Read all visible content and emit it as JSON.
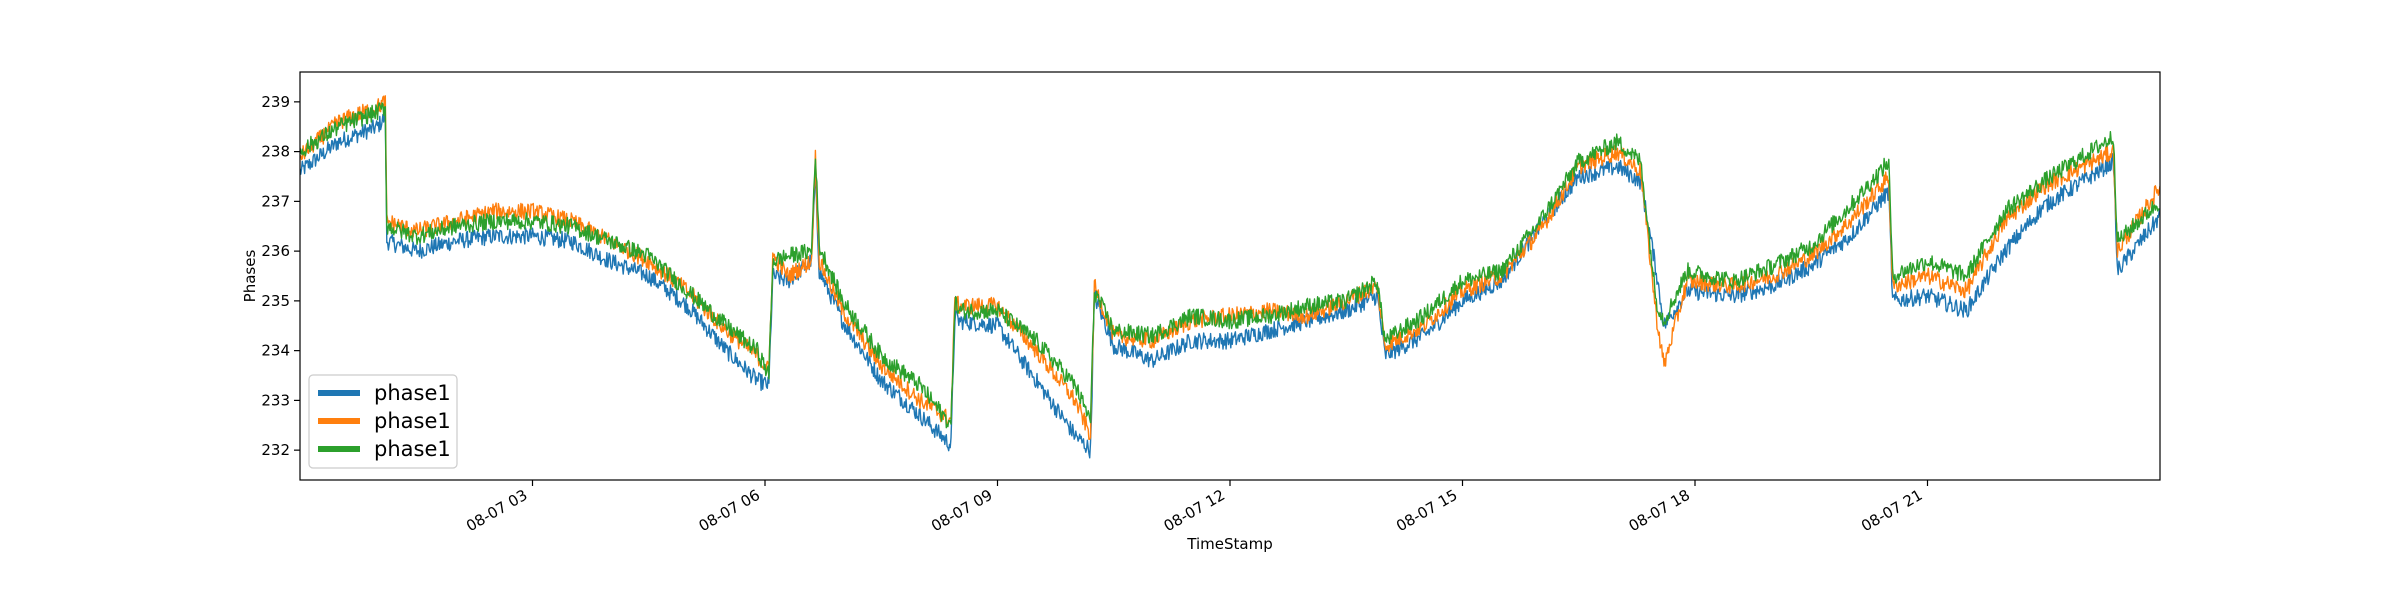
{
  "chart_data": {
    "type": "line",
    "title": "",
    "xlabel": "TimeStamp",
    "ylabel": "Phases",
    "ylim": [
      231.4,
      239.6
    ],
    "y_ticks": [
      232,
      233,
      234,
      235,
      236,
      237,
      238,
      239
    ],
    "x_ticks": [
      {
        "hour": 3,
        "label": "08-07 03"
      },
      {
        "hour": 6,
        "label": "08-07 06"
      },
      {
        "hour": 9,
        "label": "08-07 09"
      },
      {
        "hour": 12,
        "label": "08-07 12"
      },
      {
        "hour": 15,
        "label": "08-07 15"
      },
      {
        "hour": 18,
        "label": "08-07 18"
      },
      {
        "hour": 21,
        "label": "08-07 21"
      }
    ],
    "xlim_hours": [
      0,
      24
    ],
    "grid": false,
    "legend_position": "lower-left",
    "colors": [
      "#1f77b4",
      "#ff7f0e",
      "#2ca02c"
    ],
    "x": [
      0,
      0.5,
      1.0,
      1.1,
      1.12,
      1.5,
      2.0,
      2.5,
      3.0,
      3.5,
      4.0,
      4.5,
      5.0,
      5.5,
      5.9,
      6.05,
      6.1,
      6.3,
      6.6,
      6.65,
      6.7,
      7.0,
      7.5,
      8.0,
      8.4,
      8.45,
      8.5,
      9.0,
      9.5,
      10.0,
      10.2,
      10.25,
      10.5,
      11.0,
      11.5,
      12.0,
      12.5,
      13.0,
      13.5,
      13.9,
      14.0,
      14.5,
      15.0,
      15.5,
      16.0,
      16.5,
      17.0,
      17.3,
      17.5,
      17.6,
      17.9,
      18.5,
      19.0,
      19.5,
      20.0,
      20.5,
      20.55,
      21.0,
      21.5,
      22.0,
      22.5,
      23.0,
      23.4,
      23.45,
      24.0
    ],
    "series": [
      {
        "name": "phase1",
        "values": [
          237.6,
          238.2,
          238.5,
          238.7,
          236.2,
          236.0,
          236.2,
          236.3,
          236.3,
          236.2,
          235.8,
          235.5,
          234.9,
          234.0,
          233.4,
          233.3,
          235.5,
          235.4,
          235.8,
          237.5,
          235.6,
          234.6,
          233.4,
          232.7,
          232.1,
          234.7,
          234.6,
          234.5,
          233.4,
          232.3,
          232.0,
          235.1,
          234.1,
          233.8,
          234.2,
          234.2,
          234.4,
          234.6,
          234.8,
          235.1,
          233.9,
          234.3,
          235.0,
          235.4,
          236.5,
          237.5,
          237.7,
          237.4,
          235.6,
          234.5,
          235.2,
          235.1,
          235.3,
          235.7,
          236.3,
          237.2,
          235.0,
          235.1,
          234.8,
          236.0,
          236.9,
          237.4,
          237.8,
          235.6,
          236.7
        ]
      },
      {
        "name": "phase1",
        "values": [
          237.9,
          238.6,
          238.9,
          239.0,
          236.6,
          236.4,
          236.6,
          236.8,
          236.8,
          236.6,
          236.2,
          235.8,
          235.2,
          234.4,
          233.9,
          233.6,
          235.9,
          235.5,
          235.8,
          237.9,
          235.8,
          234.8,
          233.7,
          233.0,
          232.6,
          235.0,
          234.9,
          234.9,
          234.0,
          233.0,
          232.3,
          235.3,
          234.3,
          234.2,
          234.6,
          234.7,
          234.8,
          234.7,
          235.0,
          235.3,
          234.1,
          234.5,
          235.2,
          235.5,
          236.4,
          237.7,
          238.0,
          237.6,
          234.7,
          233.7,
          235.4,
          235.3,
          235.5,
          235.9,
          236.6,
          237.5,
          235.3,
          235.5,
          235.2,
          236.6,
          237.3,
          237.7,
          238.0,
          236.0,
          237.3
        ]
      },
      {
        "name": "phase1",
        "values": [
          238.0,
          238.5,
          238.8,
          238.9,
          236.5,
          236.3,
          236.5,
          236.6,
          236.6,
          236.5,
          236.2,
          235.9,
          235.2,
          234.5,
          234.0,
          233.5,
          235.8,
          235.9,
          236.0,
          238.0,
          236.1,
          235.0,
          233.9,
          233.3,
          232.5,
          235.0,
          234.8,
          234.8,
          234.2,
          233.3,
          232.6,
          235.2,
          234.4,
          234.3,
          234.7,
          234.6,
          234.7,
          234.9,
          235.0,
          235.4,
          234.2,
          234.7,
          235.4,
          235.6,
          236.6,
          237.8,
          238.2,
          237.8,
          235.0,
          234.6,
          235.6,
          235.4,
          235.7,
          236.1,
          236.9,
          237.8,
          235.5,
          235.8,
          235.5,
          236.8,
          237.4,
          237.9,
          238.3,
          236.2,
          237.0
        ]
      }
    ]
  }
}
